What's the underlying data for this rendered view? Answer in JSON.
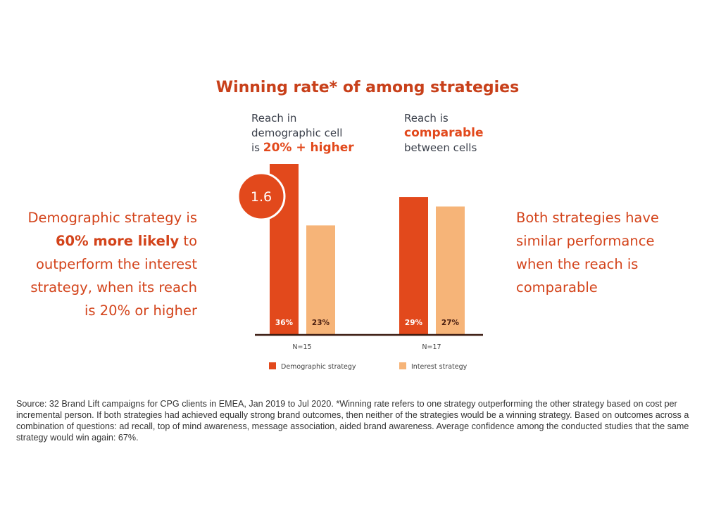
{
  "chart_data": {
    "type": "bar",
    "title": "Winning rate* of among strategies",
    "categories": [
      "N=15",
      "N=17"
    ],
    "series": [
      {
        "name": "Demographic strategy",
        "color": "#e2491c",
        "values": [
          36,
          29
        ],
        "labels": [
          "36%",
          "29%"
        ]
      },
      {
        "name": "Interest strategy",
        "color": "#f6b478",
        "values": [
          23,
          27
        ],
        "labels": [
          "23%",
          "27%"
        ]
      }
    ],
    "ylim": [
      0,
      36
    ],
    "legend": "bottom",
    "grid": false,
    "annotations": {
      "multiplier": "1.6",
      "group1_note": {
        "line1": "Reach in",
        "line2": "demographic cell",
        "line3_prefix": "is ",
        "line3_bold": "20% + higher"
      },
      "group2_note": {
        "line1": "Reach is",
        "line2_bold": "comparable",
        "line3": "between cells"
      }
    }
  },
  "left_text": {
    "l1": "Demographic strategy is",
    "l2_bold": "60% more likely",
    "l2_rest": " to",
    "l3": "outperform the interest",
    "l4": "strategy, when its reach",
    "l5": "is 20% or higher"
  },
  "right_text": {
    "l1": "Both strategies have",
    "l2": "similar performance",
    "l3": "when the reach is",
    "l4": "comparable"
  },
  "footnote": "Source: 32 Brand Lift campaigns for CPG clients in EMEA, Jan 2019 to Jul 2020. *Winning rate refers to one strategy outperforming the other strategy based on cost per incremental person. If both strategies had achieved equally strong brand outcomes, then neither of the strategies would be a winning strategy.  Based on outcomes across a combination of questions: ad recall, top of mind awareness, message association, aided brand awareness. Average confidence among the conducted studies that the same strategy would win again: 67%."
}
